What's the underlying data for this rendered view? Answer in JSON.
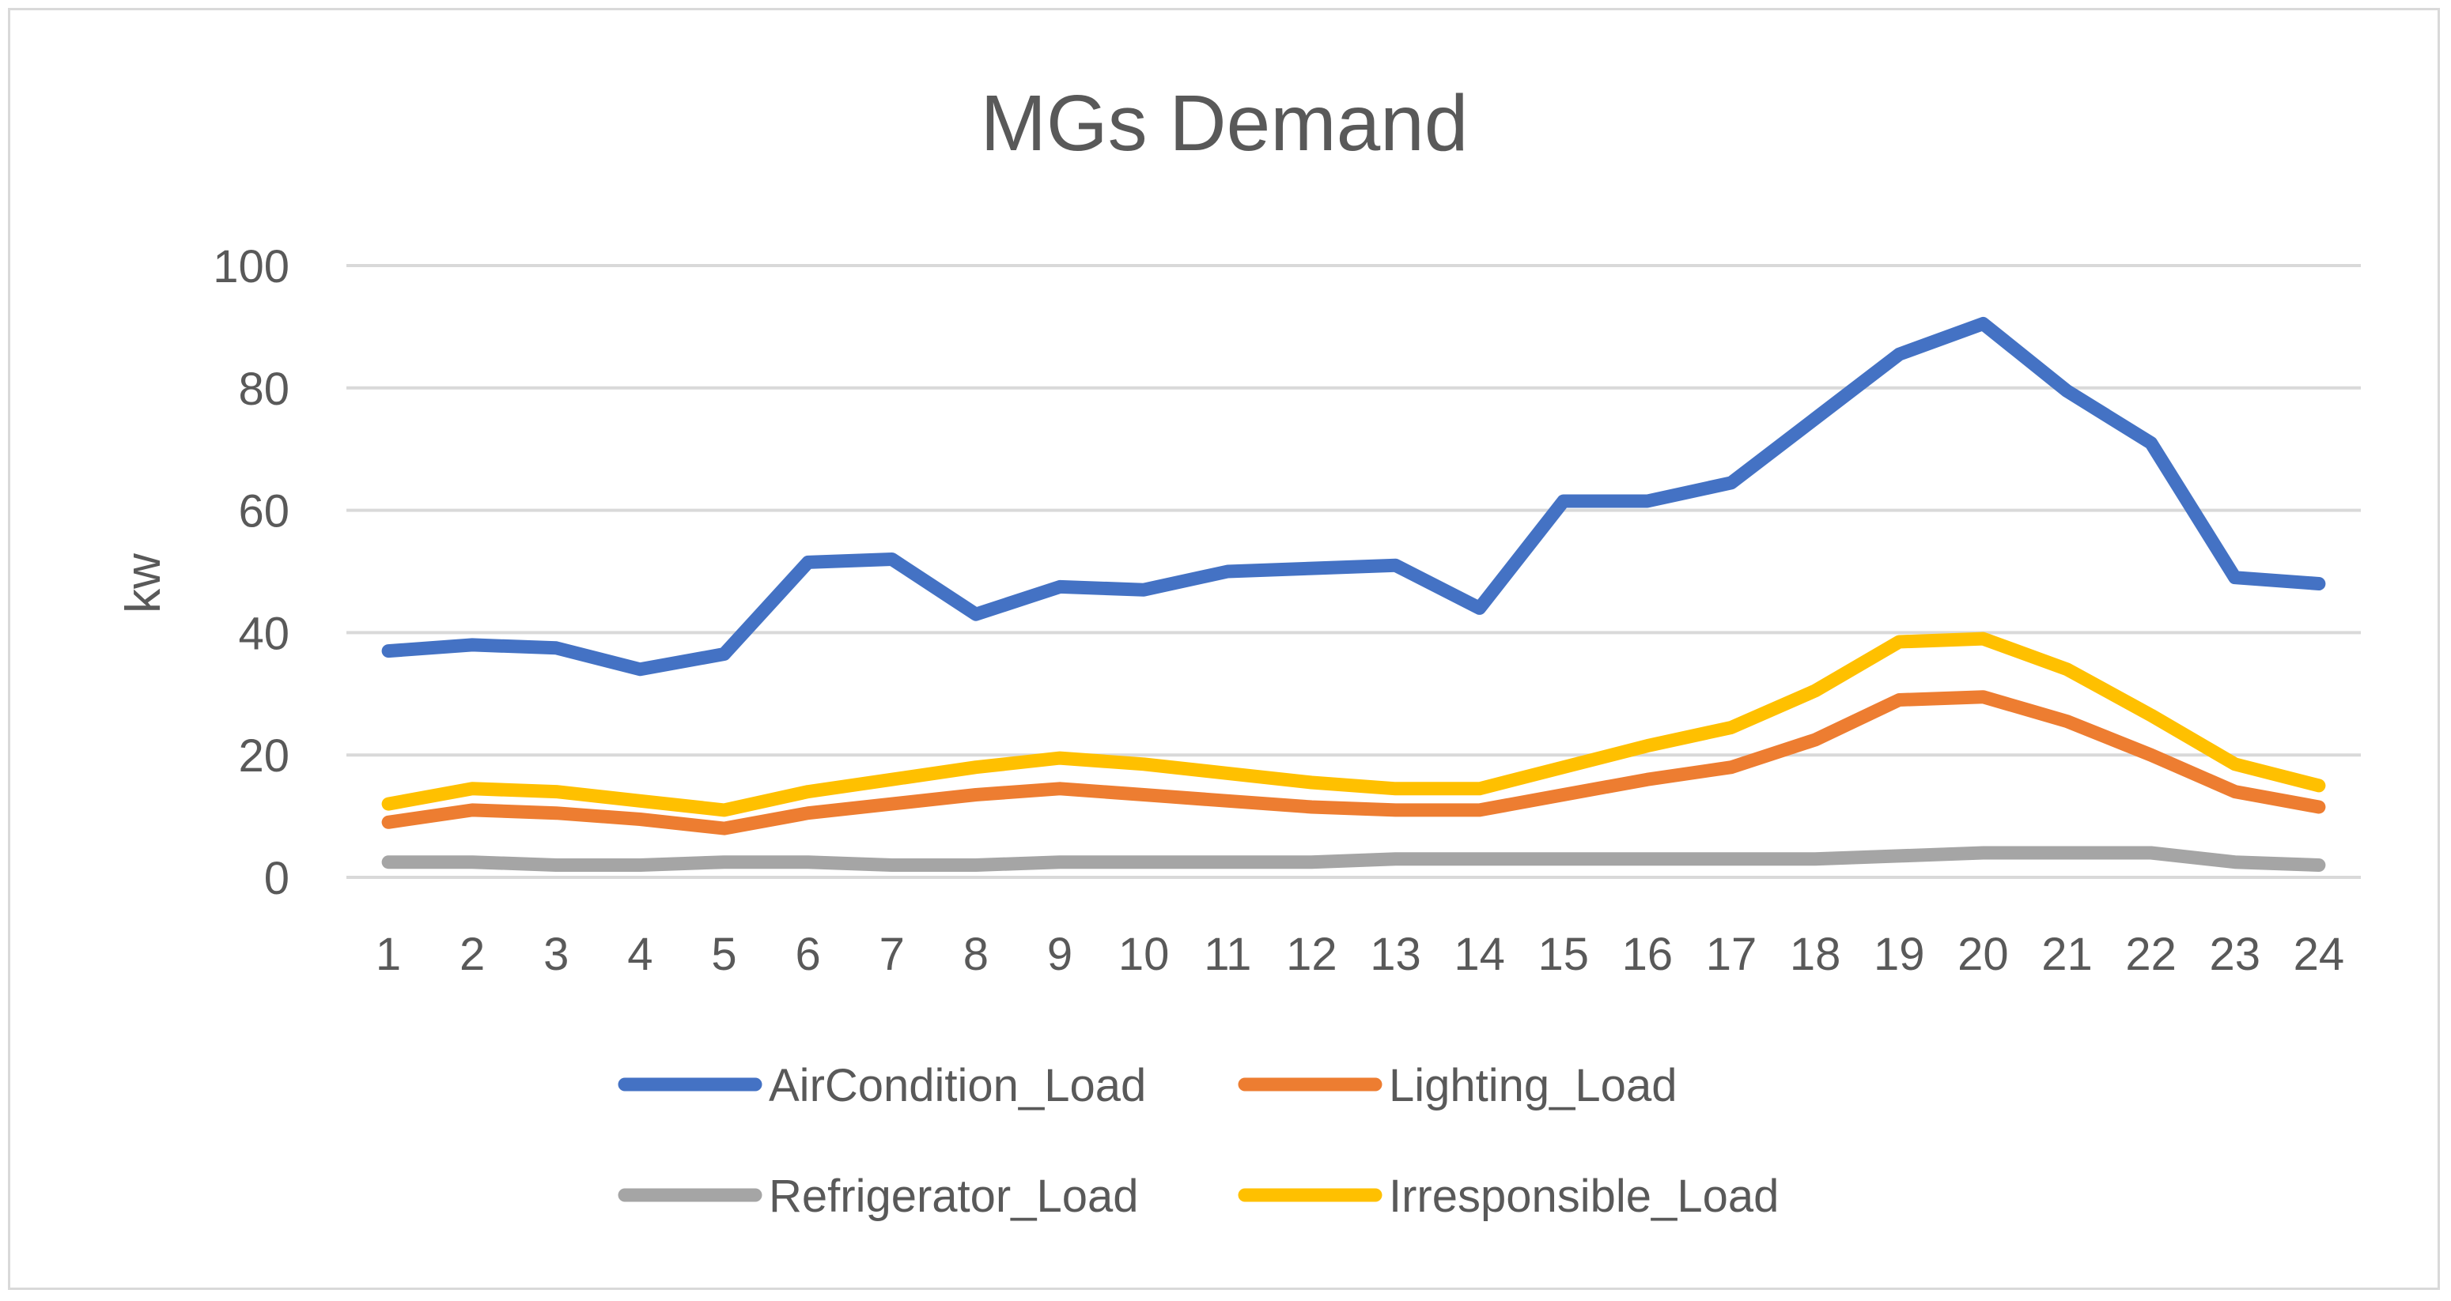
{
  "chart_data": {
    "type": "line",
    "title": "MGs Demand",
    "xlabel": "",
    "ylabel": "kw",
    "ylim": [
      0,
      100
    ],
    "yticks": [
      0,
      20,
      40,
      60,
      80,
      100
    ],
    "grid": true,
    "legend_position": "bottom",
    "categories": [
      "1",
      "2",
      "3",
      "4",
      "5",
      "6",
      "7",
      "8",
      "9",
      "10",
      "11",
      "12",
      "13",
      "14",
      "15",
      "16",
      "17",
      "18",
      "19",
      "20",
      "21",
      "22",
      "23",
      "24"
    ],
    "series": [
      {
        "name": "AirCondition_Load",
        "color": "#4472c4",
        "values": [
          37,
          38,
          37.5,
          34,
          36.5,
          51.5,
          52,
          43,
          47.5,
          47,
          50,
          50.5,
          51,
          44,
          61.5,
          61.5,
          64.5,
          75,
          85.5,
          90.5,
          79.5,
          71,
          49,
          48
        ]
      },
      {
        "name": "Lighting_Load",
        "color": "#ed7d31",
        "values": [
          9,
          11,
          10.5,
          9.5,
          8,
          10.5,
          12,
          13.5,
          14.5,
          13.5,
          12.5,
          11.5,
          11,
          11,
          13.5,
          16,
          18,
          22.5,
          29,
          29.5,
          25.5,
          20,
          14,
          11.5
        ]
      },
      {
        "name": "Refrigerator_Load",
        "color": "#a5a5a5",
        "values": [
          2.5,
          2.5,
          2,
          2,
          2.5,
          2.5,
          2,
          2,
          2.5,
          2.5,
          2.5,
          2.5,
          3,
          3,
          3,
          3,
          3,
          3,
          3.5,
          4,
          4,
          4,
          2.5,
          2
        ]
      },
      {
        "name": "Irresponsible_Load",
        "color": "#ffc000",
        "values": [
          12,
          14.5,
          14,
          12.5,
          11,
          14,
          16,
          18,
          19.5,
          18.5,
          17,
          15.5,
          14.5,
          14.5,
          18,
          21.5,
          24.5,
          30.5,
          38.5,
          39,
          34,
          26.5,
          18.5,
          15
        ]
      }
    ]
  }
}
